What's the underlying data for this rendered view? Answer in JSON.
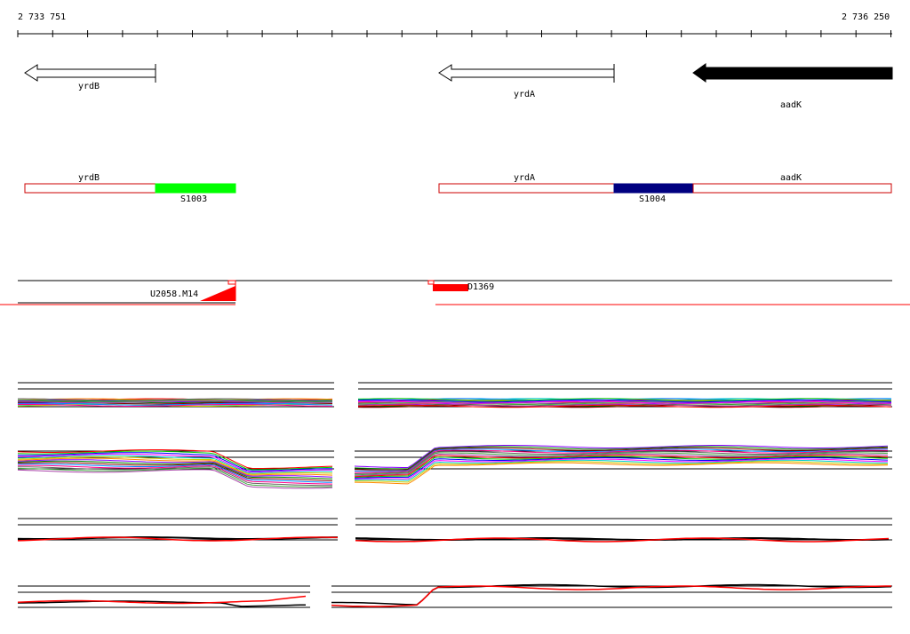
{
  "ruler": {
    "start_label": "2 733 751",
    "end_label": "2 736 250"
  },
  "genes": [
    {
      "name": "yrdB",
      "strand": "reverse",
      "filled": false
    },
    {
      "name": "yrdA",
      "strand": "reverse",
      "filled": false
    },
    {
      "name": "aadK",
      "strand": "reverse",
      "filled": true
    }
  ],
  "segments": [
    {
      "gene_label": "yrdB"
    },
    {
      "name": "S1003",
      "color": "#00ff00"
    },
    {
      "gene_label": "yrdA"
    },
    {
      "name": "S1004",
      "color": "#000080"
    },
    {
      "gene_label": "aadK"
    }
  ],
  "features": [
    {
      "name": "U2058.M14",
      "color": "#ff0000"
    },
    {
      "name": "D1369",
      "color": "#ff0000"
    }
  ],
  "colors": {
    "outline": "#cc0000",
    "accent": "#ff0000",
    "axis": "#000000"
  }
}
